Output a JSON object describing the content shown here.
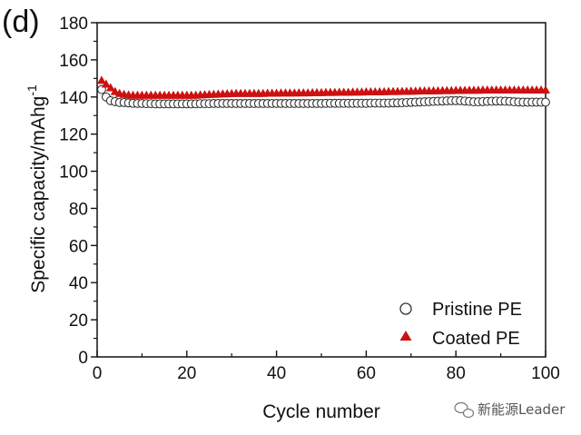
{
  "panel_label": "(d)",
  "watermark": {
    "text": "新能源Leader",
    "icon": "wechat-icon"
  },
  "chart_data": {
    "type": "scatter",
    "title": "",
    "xlabel": "Cycle number",
    "ylabel_main": "Specific capacity/mAhg",
    "ylabel_sup": "-1",
    "xlim": [
      0,
      100
    ],
    "ylim": [
      0,
      180
    ],
    "x_ticks": [
      0,
      20,
      40,
      60,
      80,
      100
    ],
    "y_ticks": [
      0,
      20,
      40,
      60,
      80,
      100,
      120,
      140,
      160,
      180
    ],
    "grid": false,
    "legend_position": "bottom-right",
    "series": [
      {
        "name": "Pristine PE",
        "marker": "open-circle",
        "color": "#333333",
        "x": [
          1,
          2,
          3,
          4,
          5,
          6,
          7,
          8,
          9,
          10,
          11,
          12,
          13,
          14,
          15,
          16,
          17,
          18,
          19,
          20,
          21,
          22,
          23,
          24,
          25,
          26,
          27,
          28,
          29,
          30,
          31,
          32,
          33,
          34,
          35,
          36,
          37,
          38,
          39,
          40,
          41,
          42,
          43,
          44,
          45,
          46,
          47,
          48,
          49,
          50,
          51,
          52,
          53,
          54,
          55,
          56,
          57,
          58,
          59,
          60,
          61,
          62,
          63,
          64,
          65,
          66,
          67,
          68,
          69,
          70,
          71,
          72,
          73,
          74,
          75,
          76,
          77,
          78,
          79,
          80,
          81,
          82,
          83,
          84,
          85,
          86,
          87,
          88,
          89,
          90,
          91,
          92,
          93,
          94,
          95,
          96,
          97,
          98,
          99,
          100
        ],
        "y": [
          144,
          140,
          138,
          137.5,
          137,
          137,
          136.8,
          136.6,
          136.5,
          136.5,
          136.4,
          136.4,
          136.3,
          136.3,
          136.3,
          136.3,
          136.3,
          136.3,
          136.3,
          136.3,
          136.3,
          136.3,
          136.4,
          136.4,
          136.4,
          136.5,
          136.5,
          136.5,
          136.5,
          136.5,
          136.5,
          136.5,
          136.5,
          136.5,
          136.5,
          136.5,
          136.5,
          136.5,
          136.5,
          136.5,
          136.5,
          136.5,
          136.5,
          136.5,
          136.5,
          136.5,
          136.5,
          136.5,
          136.5,
          136.5,
          136.6,
          136.6,
          136.6,
          136.6,
          136.6,
          136.6,
          136.6,
          136.6,
          136.6,
          136.6,
          136.7,
          136.7,
          136.7,
          136.7,
          136.7,
          136.8,
          136.8,
          136.9,
          137,
          137.1,
          137.2,
          137.3,
          137.4,
          137.5,
          137.6,
          137.7,
          137.8,
          137.9,
          138,
          138,
          138,
          137.8,
          137.6,
          137.4,
          137.4,
          137.5,
          137.6,
          137.7,
          137.8,
          137.8,
          137.7,
          137.6,
          137.4,
          137.3,
          137.2,
          137.2,
          137.2,
          137.2,
          137.2,
          137.2
        ]
      },
      {
        "name": "Coated PE",
        "marker": "filled-triangle",
        "color": "#cc1111",
        "x": [
          1,
          2,
          3,
          4,
          5,
          6,
          7,
          8,
          9,
          10,
          11,
          12,
          13,
          14,
          15,
          16,
          17,
          18,
          19,
          20,
          21,
          22,
          23,
          24,
          25,
          26,
          27,
          28,
          29,
          30,
          31,
          32,
          33,
          34,
          35,
          36,
          37,
          38,
          39,
          40,
          41,
          42,
          43,
          44,
          45,
          46,
          47,
          48,
          49,
          50,
          51,
          52,
          53,
          54,
          55,
          56,
          57,
          58,
          59,
          60,
          61,
          62,
          63,
          64,
          65,
          66,
          67,
          68,
          69,
          70,
          71,
          72,
          73,
          74,
          75,
          76,
          77,
          78,
          79,
          80,
          81,
          82,
          83,
          84,
          85,
          86,
          87,
          88,
          89,
          90,
          91,
          92,
          93,
          94,
          95,
          96,
          97,
          98,
          99,
          100
        ],
        "y": [
          149,
          147,
          145,
          143,
          142,
          141.5,
          141.2,
          141,
          141,
          141,
          141,
          141,
          141,
          141,
          141,
          141,
          141,
          141,
          141,
          141,
          141,
          141,
          141.2,
          141.3,
          141.4,
          141.5,
          141.6,
          141.7,
          141.8,
          141.9,
          142,
          142,
          142,
          142,
          142,
          142,
          142,
          142.1,
          142.1,
          142.1,
          142.2,
          142.2,
          142.2,
          142.2,
          142.3,
          142.3,
          142.3,
          142.4,
          142.4,
          142.4,
          142.5,
          142.5,
          142.5,
          142.6,
          142.6,
          142.6,
          142.7,
          142.7,
          142.7,
          142.8,
          142.8,
          142.8,
          142.9,
          142.9,
          143,
          143,
          143,
          143.1,
          143.1,
          143.2,
          143.2,
          143.3,
          143.3,
          143.3,
          143.4,
          143.4,
          143.5,
          143.5,
          143.5,
          143.6,
          143.6,
          143.6,
          143.7,
          143.7,
          143.7,
          143.8,
          143.8,
          143.8,
          143.8,
          143.8,
          143.8,
          143.8,
          143.8,
          143.8,
          143.8,
          143.8,
          143.8,
          143.8,
          143.8,
          143.8
        ]
      }
    ]
  }
}
